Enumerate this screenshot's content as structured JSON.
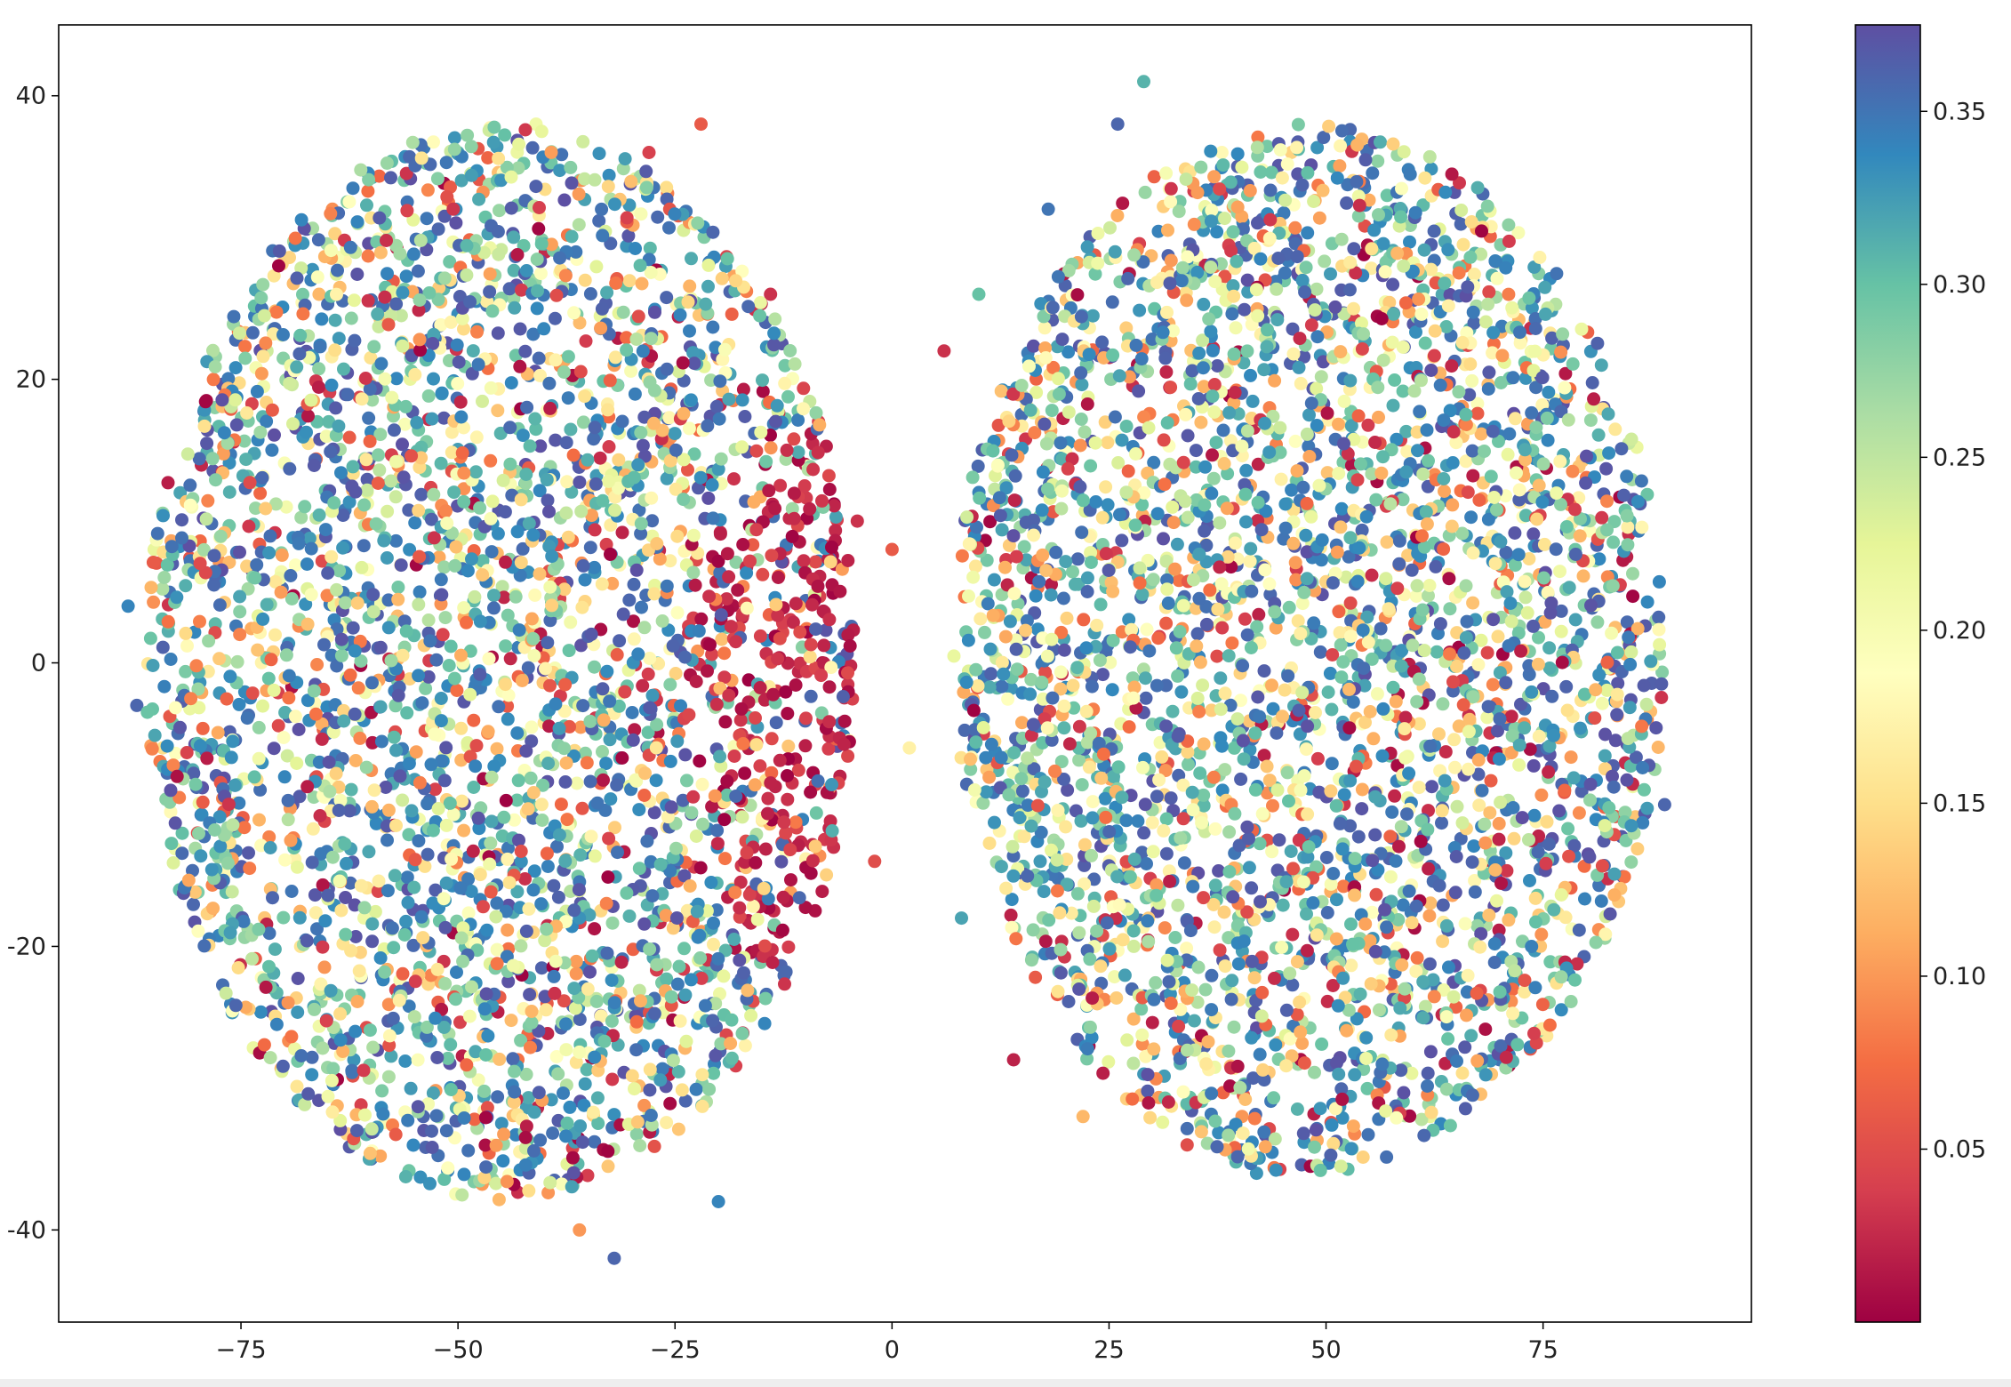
{
  "chart_data": {
    "type": "scatter",
    "title": "",
    "xlabel": "",
    "ylabel": "",
    "xlim": [
      -96,
      99
    ],
    "ylim": [
      -46.5,
      45
    ],
    "xticks": [
      -75,
      -50,
      -25,
      0,
      25,
      50,
      75
    ],
    "xtick_labels": [
      "−75",
      "−50",
      "−25",
      "0",
      "25",
      "50",
      "75"
    ],
    "yticks": [
      -40,
      -20,
      0,
      20,
      40
    ],
    "ytick_labels": [
      "-40",
      "-20",
      "0",
      "20",
      "40"
    ],
    "grid": false,
    "legend": "none",
    "colormap": "Spectral",
    "colorbar": {
      "range": [
        0.0,
        0.375
      ],
      "ticks": [
        0.05,
        0.1,
        0.15,
        0.2,
        0.25,
        0.3,
        0.35
      ],
      "tick_labels": [
        "0.05",
        "0.10",
        "0.15",
        "0.20",
        "0.25",
        "0.30",
        "0.35"
      ],
      "colors": [
        "#9e0142",
        "#d53e4f",
        "#f46d43",
        "#fdae61",
        "#fee08b",
        "#ffffbf",
        "#e6f598",
        "#abdda4",
        "#66c2a5",
        "#3288bd",
        "#5e4fa2"
      ]
    },
    "series": [
      {
        "point_count": 7000,
        "clusters": [
          {
            "center": [
              -45,
              0
            ],
            "radius_x": 41,
            "radius_y": 38,
            "note": "left lobe"
          },
          {
            "center": [
              48,
              1
            ],
            "radius_x": 41,
            "radius_y": 37,
            "note": "right lobe"
          }
        ],
        "low_value_region": {
          "center": [
            -10,
            -3
          ],
          "value_range": [
            0.0,
            0.05
          ]
        },
        "sample_points": [
          [
            -88,
            4,
            0.34
          ],
          [
            -87,
            -3,
            0.36
          ],
          [
            -85,
            8,
            0.22
          ],
          [
            -84,
            -6,
            0.15
          ],
          [
            -82,
            12,
            0.32
          ],
          [
            -80,
            -12,
            0.05
          ],
          [
            -78,
            18,
            0.28
          ],
          [
            -76,
            -18,
            0.3
          ],
          [
            -72,
            22,
            0.24
          ],
          [
            -70,
            -24,
            0.35
          ],
          [
            -66,
            26,
            0.12
          ],
          [
            -62,
            -28,
            0.33
          ],
          [
            -58,
            30,
            0.27
          ],
          [
            -54,
            -32,
            0.36
          ],
          [
            -50,
            36,
            0.31
          ],
          [
            -46,
            -34,
            0.18
          ],
          [
            -41,
            38,
            0.21
          ],
          [
            -36,
            -40,
            0.1
          ],
          [
            -32,
            -42,
            0.36
          ],
          [
            -28,
            36,
            0.04
          ],
          [
            -22,
            38,
            0.06
          ],
          [
            -20,
            -38,
            0.34
          ],
          [
            -14,
            26,
            0.03
          ],
          [
            -10,
            14,
            0.02
          ],
          [
            -8,
            0,
            0.01
          ],
          [
            -6,
            -8,
            0.02
          ],
          [
            -4,
            10,
            0.03
          ],
          [
            -2,
            -14,
            0.05
          ],
          [
            0,
            8,
            0.06
          ],
          [
            2,
            -6,
            0.17
          ],
          [
            6,
            22,
            0.03
          ],
          [
            8,
            -18,
            0.32
          ],
          [
            10,
            26,
            0.3
          ],
          [
            14,
            -28,
            0.02
          ],
          [
            18,
            32,
            0.35
          ],
          [
            22,
            -32,
            0.12
          ],
          [
            26,
            38,
            0.36
          ],
          [
            29,
            41,
            0.31
          ],
          [
            34,
            -34,
            0.05
          ],
          [
            38,
            36,
            0.18
          ],
          [
            42,
            -36,
            0.33
          ],
          [
            46,
            36,
            0.14
          ],
          [
            52,
            -34,
            0.29
          ],
          [
            58,
            32,
            0.36
          ],
          [
            62,
            -32,
            0.22
          ],
          [
            66,
            28,
            0.08
          ],
          [
            70,
            -28,
            0.35
          ],
          [
            74,
            24,
            0.13
          ],
          [
            78,
            -22,
            0.34
          ],
          [
            82,
            18,
            0.37
          ],
          [
            85,
            10,
            0.31
          ],
          [
            87,
            -4,
            0.09
          ],
          [
            89,
            -10,
            0.36
          ],
          [
            88,
            3,
            0.27
          ]
        ]
      }
    ]
  }
}
